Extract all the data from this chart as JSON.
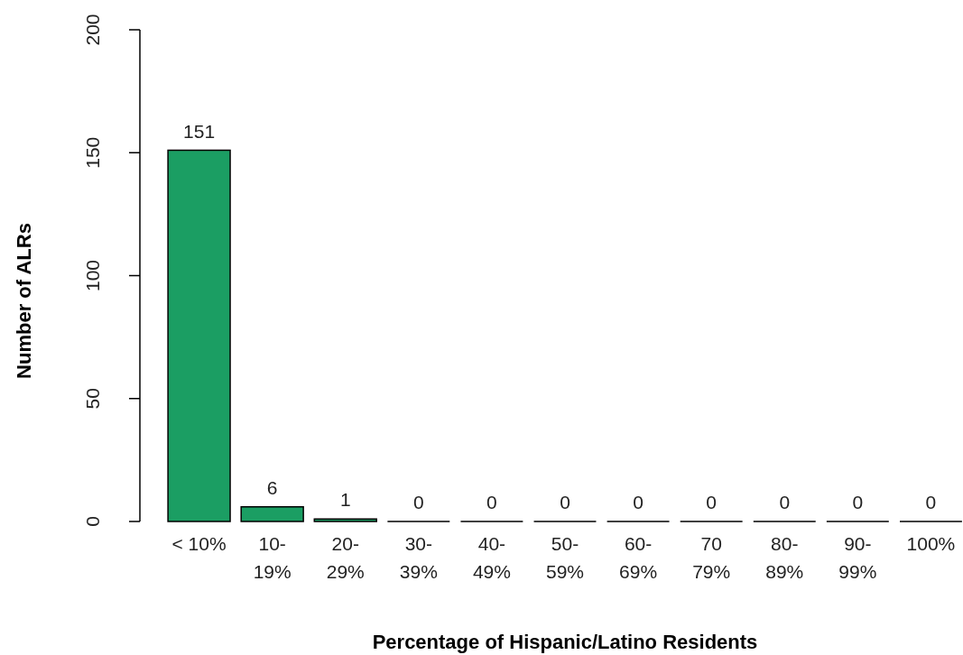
{
  "chart_data": {
    "type": "bar",
    "xlabel": "Percentage of Hispanic/Latino Residents",
    "ylabel": "Number of ALRs",
    "categories": [
      "< 10%",
      "10-\n19%",
      "20-\n29%",
      "30-\n39%",
      "40-\n49%",
      "50-\n59%",
      "60-\n69%",
      "70\n79%",
      "80-\n89%",
      "90-\n99%",
      "100%"
    ],
    "values": [
      151,
      6,
      1,
      0,
      0,
      0,
      0,
      0,
      0,
      0,
      0
    ],
    "color": "#1b9e63",
    "ylim": [
      0,
      200
    ],
    "yticks": [
      0,
      50,
      100,
      150,
      200
    ],
    "data_labels": true
  }
}
